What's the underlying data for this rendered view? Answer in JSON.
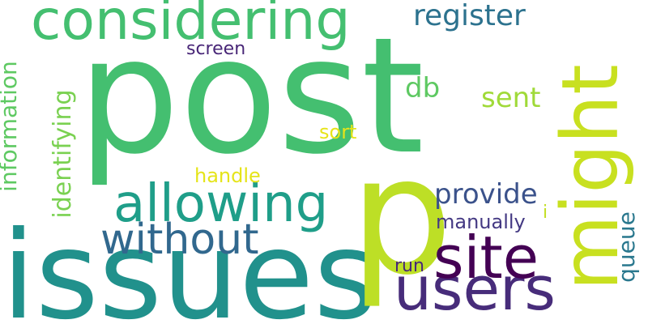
{
  "words": [
    {
      "text": "post",
      "color": "#44bf70"
    },
    {
      "text": "issues",
      "color": "#21918c"
    },
    {
      "text": "p",
      "color": "#bddf26"
    },
    {
      "text": "might",
      "color": "#c8e020"
    },
    {
      "text": "considering",
      "color": "#44bf70"
    },
    {
      "text": "users",
      "color": "#472c7a"
    },
    {
      "text": "site",
      "color": "#440154"
    },
    {
      "text": "allowing",
      "color": "#1f9e89"
    },
    {
      "text": "without",
      "color": "#31688e"
    },
    {
      "text": "register",
      "color": "#2c728e"
    },
    {
      "text": "provide",
      "color": "#3b528b"
    },
    {
      "text": "information",
      "color": "#5ec962"
    },
    {
      "text": "identifying",
      "color": "#7ad151"
    },
    {
      "text": "sent",
      "color": "#a0da39"
    },
    {
      "text": "db",
      "color": "#5ec962"
    },
    {
      "text": "screen",
      "color": "#482677"
    },
    {
      "text": "sort",
      "color": "#e7e419"
    },
    {
      "text": "handle",
      "color": "#e5e419"
    },
    {
      "text": "manually",
      "color": "#443983"
    },
    {
      "text": "queue",
      "color": "#2a788e"
    },
    {
      "text": "run",
      "color": "#482878"
    },
    {
      "text": "i",
      "color": "#c2df23"
    }
  ]
}
